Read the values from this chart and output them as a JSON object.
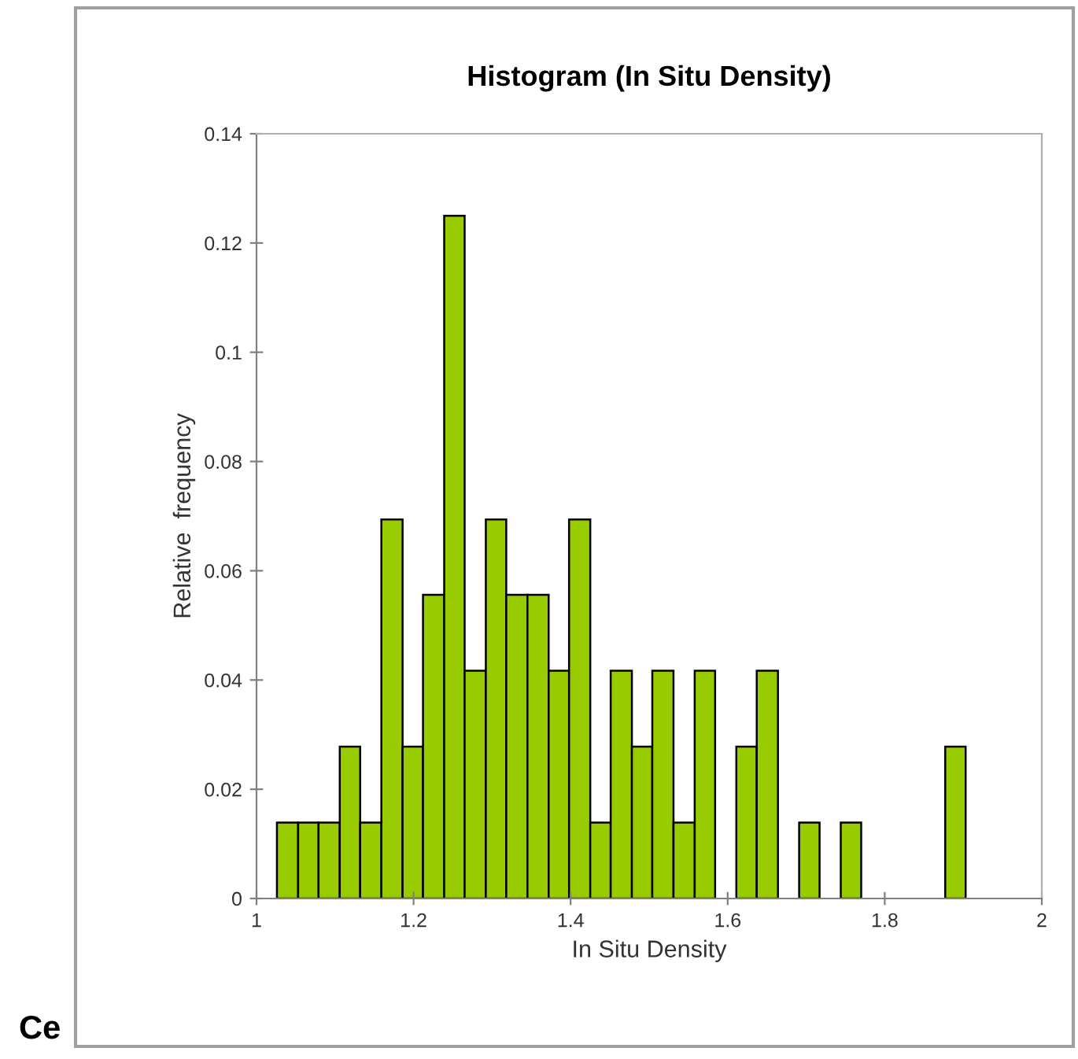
{
  "chart_data": {
    "type": "histogram",
    "title": "Histogram (In Situ Density)",
    "xlabel": "In Situ Density",
    "ylabel": "Relative  frequency",
    "bins": [
      1.026,
      1.053,
      1.079,
      1.106,
      1.132,
      1.159,
      1.186,
      1.212,
      1.239,
      1.265,
      1.292,
      1.318,
      1.345,
      1.372,
      1.398,
      1.425,
      1.451,
      1.478,
      1.504,
      1.531,
      1.558,
      1.584,
      1.611,
      1.637,
      1.664,
      1.691,
      1.717,
      1.744,
      1.77,
      1.877,
      1.903
    ],
    "values": [
      0.0139,
      0.0139,
      0.0139,
      0.0278,
      0.0139,
      0.0694,
      0.0278,
      0.0556,
      0.125,
      0.0417,
      0.0694,
      0.0556,
      0.0556,
      0.0417,
      0.0694,
      0.0139,
      0.0417,
      0.0278,
      0.0417,
      0.0139,
      0.0417,
      0,
      0.0278,
      0.0417,
      0,
      0.0139,
      0,
      0.0139,
      0,
      0.0278
    ],
    "color": "#99cc00",
    "xlim": [
      1,
      2
    ],
    "xticks": [
      1,
      1.2,
      1.4,
      1.6,
      1.8,
      2
    ],
    "ylim": [
      0,
      0.14
    ],
    "yticks": [
      0,
      0.02,
      0.04,
      0.06,
      0.08,
      0.1,
      0.12,
      0.14
    ],
    "grid": false,
    "annotations": [
      "Ce"
    ]
  }
}
